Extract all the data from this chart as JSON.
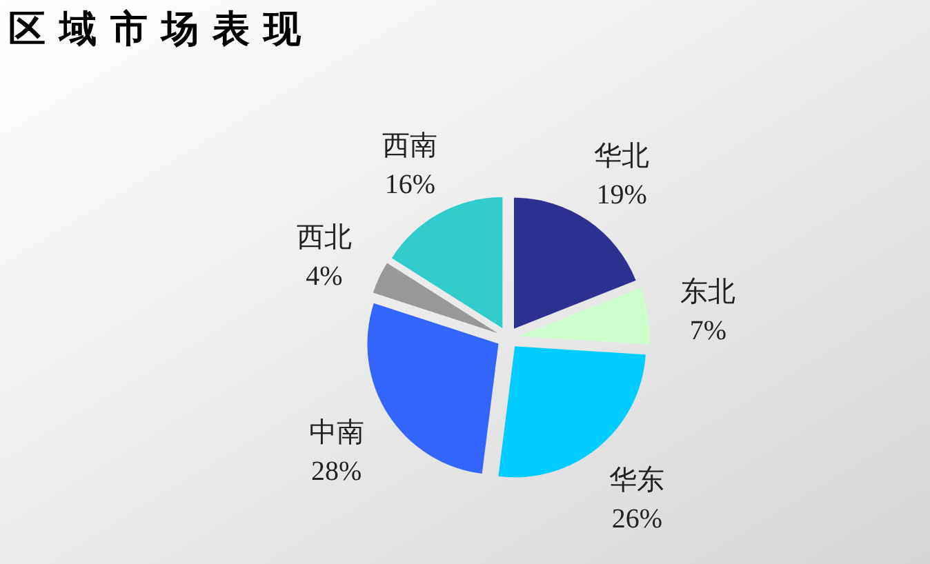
{
  "chart_data": {
    "type": "pie",
    "title": "区域市场表现",
    "categories": [
      "华北",
      "东北",
      "华东",
      "中南",
      "西北",
      "西南"
    ],
    "values": [
      19,
      7,
      26,
      28,
      4,
      16
    ],
    "colors": [
      "#2e3192",
      "#ccffcc",
      "#00ccff",
      "#3366ff",
      "#999999",
      "#33cccc"
    ],
    "value_labels": [
      "19%",
      "7%",
      "26%",
      "28%",
      "4%",
      "16%"
    ]
  }
}
